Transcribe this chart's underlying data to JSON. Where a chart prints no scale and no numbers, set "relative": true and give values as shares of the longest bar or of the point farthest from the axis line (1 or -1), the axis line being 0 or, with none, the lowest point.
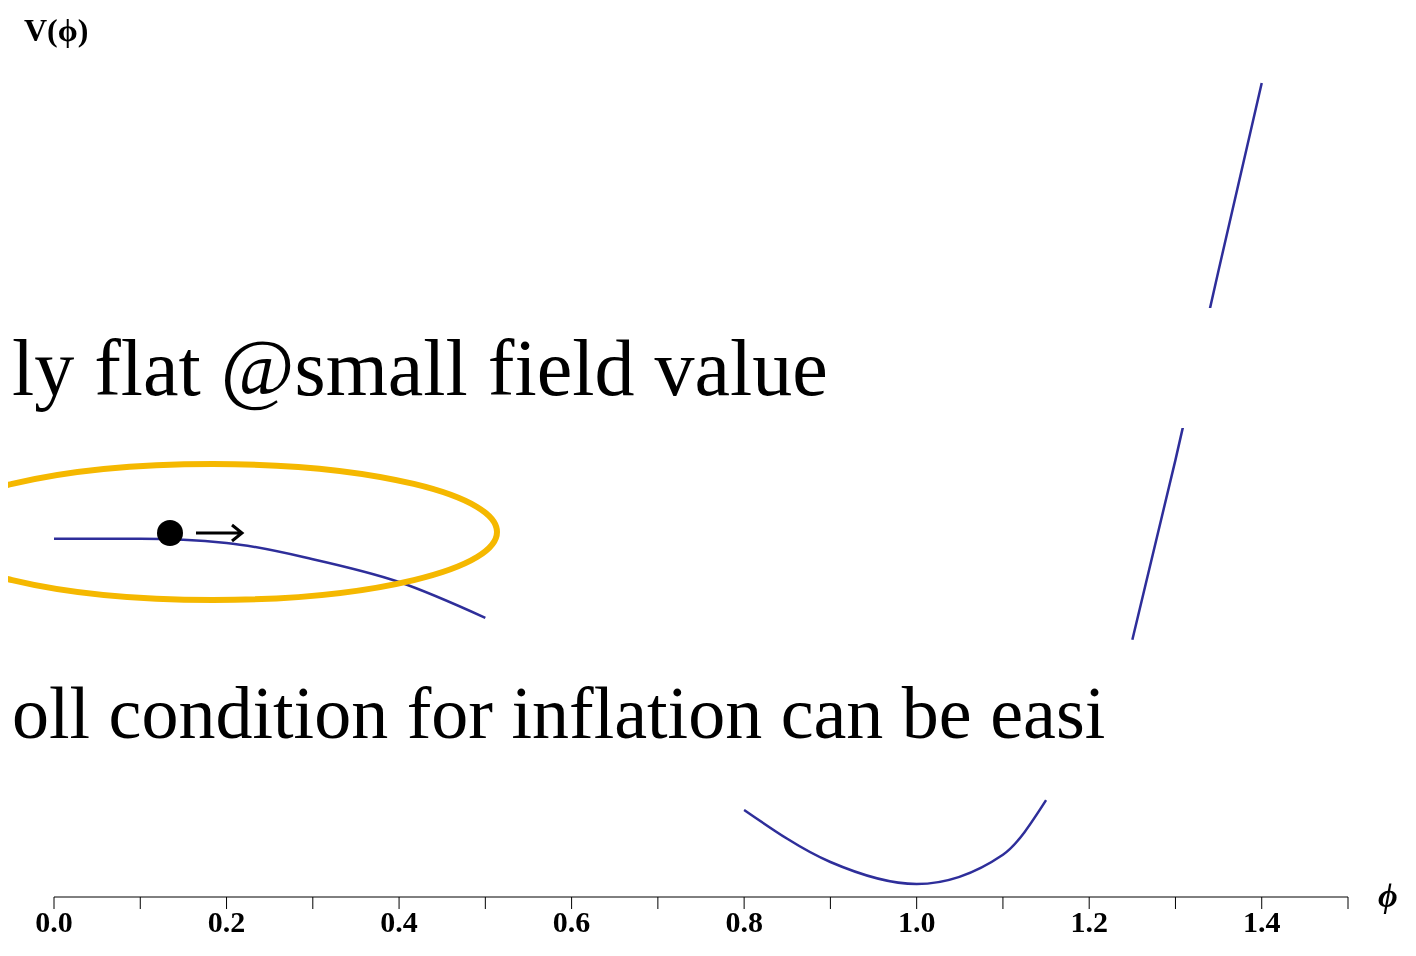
{
  "chart_data": {
    "type": "line",
    "relative": true,
    "ylabel": "V(ϕ)",
    "xlabel": "ϕ",
    "xlim": [
      0,
      1.5
    ],
    "xticks": [
      {
        "value": 0,
        "label": "0.0"
      },
      {
        "value": 0.1,
        "label": null
      },
      {
        "value": 0.2,
        "label": "0.2"
      },
      {
        "value": 0.3,
        "label": null
      },
      {
        "value": 0.4,
        "label": "0.4"
      },
      {
        "value": 0.5,
        "label": null
      },
      {
        "value": 0.6,
        "label": "0.6"
      },
      {
        "value": 0.7,
        "label": null
      },
      {
        "value": 0.8,
        "label": "0.8"
      },
      {
        "value": 0.9,
        "label": null
      },
      {
        "value": 1.0,
        "label": "1.0"
      },
      {
        "value": 1.1,
        "label": null
      },
      {
        "value": 1.2,
        "label": "1.2"
      },
      {
        "value": 1.3,
        "label": null
      },
      {
        "value": 1.4,
        "label": "1.4"
      },
      {
        "value": 1.5,
        "label": null
      }
    ],
    "x": [
      0,
      0.1,
      0.2,
      0.3,
      0.4,
      0.5,
      0.6,
      0.7,
      0.8,
      0.9,
      1.0,
      1.1,
      1.15,
      1.2,
      1.25,
      1.3,
      1.35,
      1.4
    ],
    "series": [
      {
        "color": "#2e2e9a",
        "values": [
          0.44,
          0.44,
          0.435,
          0.415,
          0.387,
          0.343,
          null,
          null,
          0.107,
          0.043,
          0.016,
          0.052,
          0.119,
          null,
          0.316,
          0.537,
          0.77,
          1.0
        ]
      }
    ],
    "marker": "none",
    "grid": false,
    "legend": false,
    "annotations": [
      "ly flat @small field value",
      "oll condition for inflation can be easi"
    ]
  }
}
